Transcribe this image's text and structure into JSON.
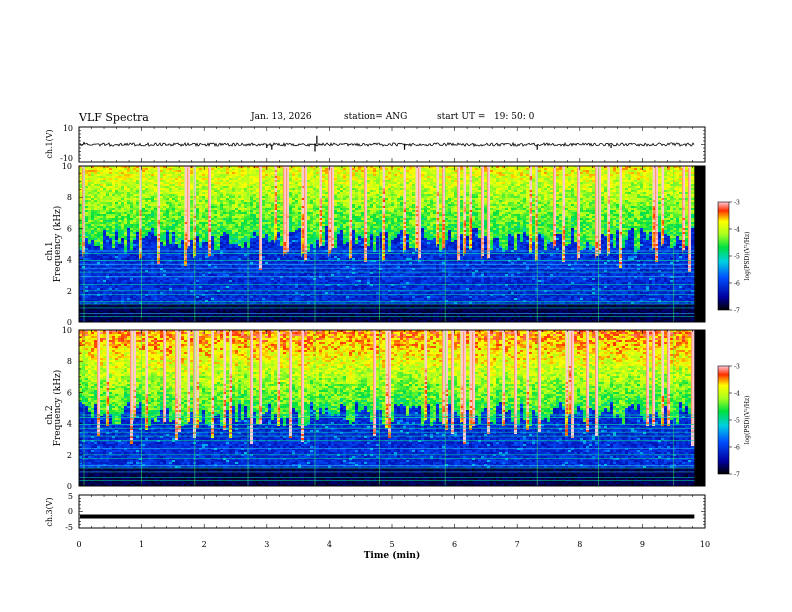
{
  "header": {
    "title": "VLF Spectra",
    "date": "Jan. 13, 2026",
    "station": "station= ANG",
    "start": "start UT =   19: 50: 0"
  },
  "chart_data": [
    {
      "type": "line",
      "name": "ch1-waveform",
      "ylabel": "ch.1(V)",
      "ylim": [
        -10,
        10
      ],
      "ytick_labels": [
        "10",
        "-10"
      ],
      "baseline": 0,
      "spikes": [
        {
          "t": 0.08,
          "v": 1.5
        },
        {
          "t": 3.0,
          "v": -2
        },
        {
          "t": 3.08,
          "v": -3
        },
        {
          "t": 3.77,
          "v": -4
        },
        {
          "t": 3.8,
          "v": 5
        },
        {
          "t": 5.2,
          "v": -3
        },
        {
          "t": 7.32,
          "v": -3
        },
        {
          "t": 8.5,
          "v": -2
        }
      ]
    },
    {
      "type": "heatmap",
      "name": "ch1-spectrogram",
      "ylabel": "ch.1",
      "ylabel2": "Frequency (kHz)",
      "ylim": [
        0,
        10
      ],
      "ytick_labels": [
        "0",
        "2",
        "4",
        "6",
        "8",
        "10"
      ],
      "colorbar": {
        "label": "log(PSD)(V²/Hz)",
        "range": [
          -7,
          -3
        ],
        "tick_labels": [
          "-3",
          "-4",
          "-5",
          "-6",
          "-7"
        ]
      }
    },
    {
      "type": "heatmap",
      "name": "ch2-spectrogram",
      "ylabel": "ch.2",
      "ylabel2": "Frequency (kHz)",
      "ylim": [
        0,
        10
      ],
      "ytick_labels": [
        "0",
        "2",
        "4",
        "6",
        "8",
        "10"
      ],
      "colorbar": {
        "label": "log(PSD)(V²/Hz)",
        "range": [
          -7,
          -3
        ],
        "tick_labels": [
          "-3",
          "-4",
          "-5",
          "-6",
          "-7"
        ]
      }
    },
    {
      "type": "line",
      "name": "ch3-waveform",
      "ylabel": "ch.3(V)",
      "ylim": [
        -5,
        5
      ],
      "ytick_labels": [
        "5",
        "0",
        "-5"
      ],
      "value": -1.5
    }
  ],
  "xaxis": {
    "label": "Time (min)",
    "xlim": [
      0,
      10
    ],
    "data_end": 9.83,
    "tick_labels": [
      "0",
      "1",
      "2",
      "3",
      "4",
      "5",
      "6",
      "7",
      "8",
      "9",
      "10"
    ]
  }
}
